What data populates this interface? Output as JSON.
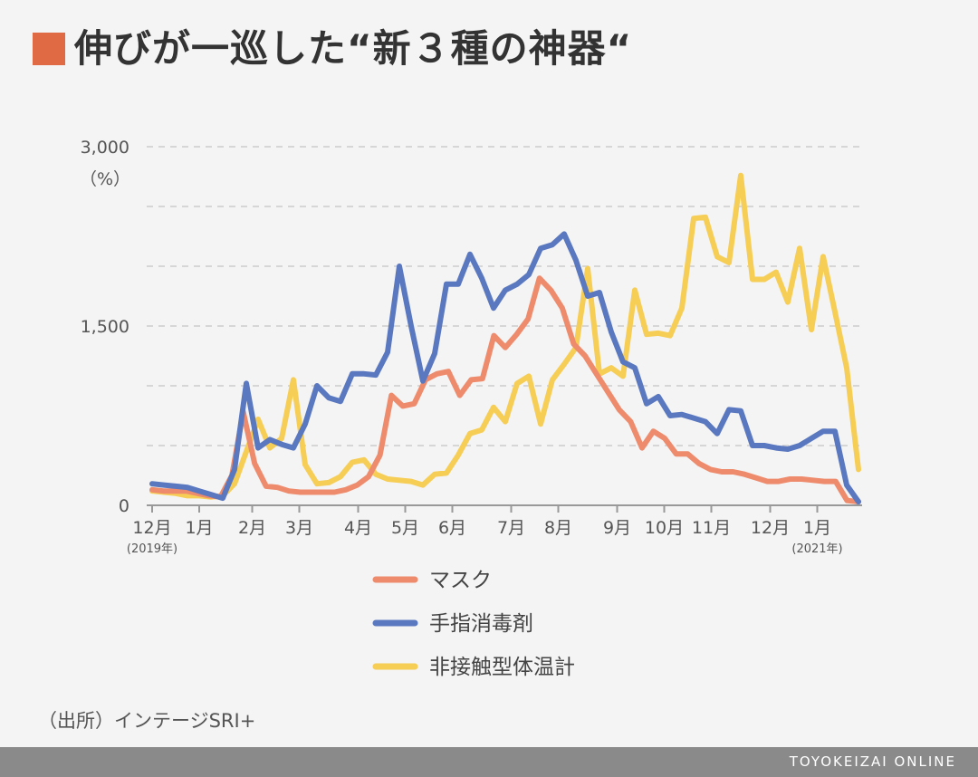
{
  "title": "伸びが一巡した“新３種の神器“",
  "source": "（出所）インテージSRI+",
  "footer_brand": "TOYOKEIZAI ONLINE",
  "colors": {
    "title_marker": "#e06a44",
    "grid": "#cccccc",
    "axis": "#999999"
  },
  "chart_data": {
    "type": "line",
    "title": "伸びが一巡した“新３種の神器“",
    "ylabel": "（%）",
    "ylim": [
      0,
      3000
    ],
    "yticks": [
      0,
      1500,
      3000
    ],
    "ytick_labels": [
      "0",
      "1,500",
      "3,000"
    ],
    "grid": true,
    "legend_position": "bottom-center",
    "x_tick_labels": [
      {
        "label": "12月",
        "sub": "(2019年)",
        "t": 0
      },
      {
        "label": "1月",
        "t": 4
      },
      {
        "label": "2月",
        "t": 8.5
      },
      {
        "label": "3月",
        "t": 12.5
      },
      {
        "label": "4月",
        "t": 17.5
      },
      {
        "label": "5月",
        "t": 21.5
      },
      {
        "label": "6月",
        "t": 25.5
      },
      {
        "label": "7月",
        "t": 30.5
      },
      {
        "label": "8月",
        "t": 34.5
      },
      {
        "label": "9月",
        "t": 39.5
      },
      {
        "label": "10月",
        "t": 43.5
      },
      {
        "label": "11月",
        "t": 47.5
      },
      {
        "label": "12月",
        "t": 52.5
      },
      {
        "label": "1月",
        "sub": "(2021年)",
        "t": 56.5
      }
    ],
    "series": [
      {
        "name": "マスク",
        "color": "#ee8b6c",
        "values": [
          130,
          120,
          120,
          120,
          100,
          80,
          70,
          250,
          780,
          350,
          160,
          150,
          120,
          110,
          110,
          110,
          110,
          130,
          170,
          240,
          420,
          920,
          830,
          850,
          1050,
          1100,
          1120,
          920,
          1050,
          1060,
          1420,
          1320,
          1430,
          1560,
          1900,
          1800,
          1650,
          1350,
          1250,
          1100,
          950,
          800,
          700,
          480,
          620,
          560,
          430,
          430,
          350,
          300,
          280,
          280,
          260,
          230,
          200,
          200,
          220,
          220,
          210,
          200,
          200,
          40,
          30
        ],
        "x_index_start": 0
      },
      {
        "name": "手指消毒剤",
        "color": "#5a78c0",
        "values": [
          180,
          170,
          160,
          150,
          120,
          90,
          60,
          300,
          1020,
          480,
          550,
          510,
          480,
          680,
          1000,
          900,
          870,
          1100,
          1100,
          1090,
          1280,
          2000,
          1500,
          1040,
          1270,
          1850,
          1850,
          2100,
          1900,
          1650,
          1800,
          1850,
          1930,
          2150,
          2180,
          2270,
          2050,
          1750,
          1780,
          1450,
          1200,
          1150,
          850,
          910,
          750,
          760,
          730,
          700,
          600,
          800,
          790,
          500,
          500,
          480,
          470,
          500,
          560,
          620,
          620,
          170,
          30
        ],
        "x_index_start": 0
      },
      {
        "name": "非接触型体温計",
        "color": "#f6cd55",
        "values": [
          120,
          110,
          100,
          80,
          80,
          70,
          80,
          180,
          450,
          720,
          480,
          560,
          1050,
          340,
          180,
          190,
          240,
          360,
          380,
          260,
          220,
          210,
          200,
          170,
          260,
          270,
          420,
          600,
          630,
          820,
          700,
          1020,
          1080,
          680,
          1050,
          1180,
          1320,
          1980,
          1100,
          1150,
          1080,
          1800,
          1430,
          1440,
          1420,
          1650,
          2400,
          2410,
          2080,
          2030,
          2760,
          1890,
          1890,
          1950,
          1700,
          2150,
          1470,
          2080,
          1620,
          1150,
          300
        ],
        "x_index_start": 0
      }
    ]
  }
}
